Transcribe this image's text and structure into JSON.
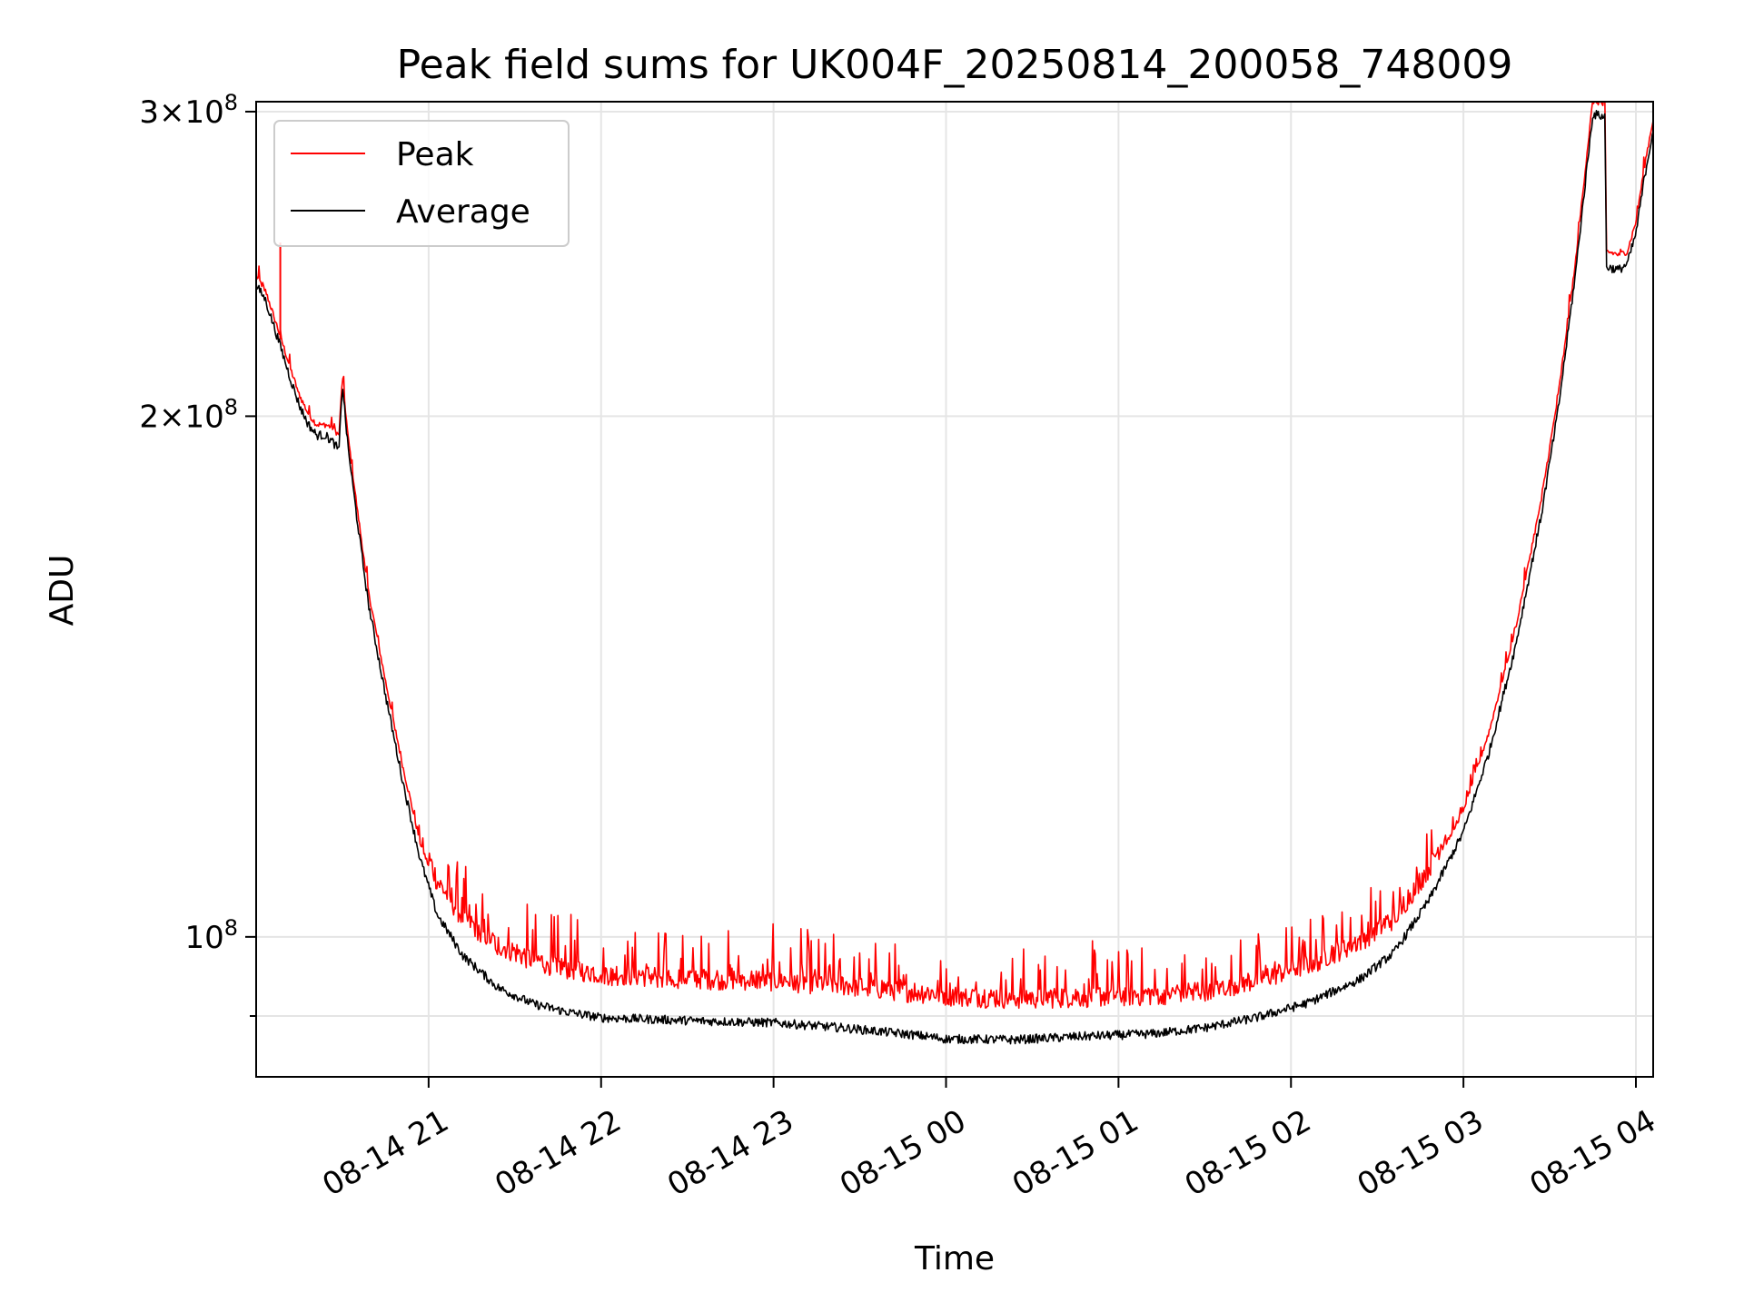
{
  "chart_data": {
    "type": "line",
    "title": "Peak field sums for UK004F_20250814_200058_748009",
    "xlabel": "Time",
    "ylabel": "ADU",
    "x_axis": {
      "type": "time",
      "range_hours": [
        20.0,
        28.1
      ],
      "ticks": [
        {
          "hour": 21,
          "label": "08-14 21"
        },
        {
          "hour": 22,
          "label": "08-14 22"
        },
        {
          "hour": 23,
          "label": "08-14 23"
        },
        {
          "hour": 24,
          "label": "08-15 00"
        },
        {
          "hour": 25,
          "label": "08-15 01"
        },
        {
          "hour": 26,
          "label": "08-15 02"
        },
        {
          "hour": 27,
          "label": "08-15 03"
        },
        {
          "hour": 28,
          "label": "08-15 04"
        }
      ]
    },
    "y_axis": {
      "scale": "log",
      "range": [
        83000000,
        304000000
      ],
      "major_ticks": [
        {
          "value": 100000000,
          "base": "10",
          "exp": "8",
          "coef": ""
        },
        {
          "value": 200000000,
          "base": "×10",
          "exp": "8",
          "coef": "2"
        },
        {
          "value": 300000000,
          "base": "×10",
          "exp": "8",
          "coef": "3"
        }
      ],
      "minor_ticks": [
        90000000
      ]
    },
    "grid": true,
    "legend": {
      "position": "upper-left",
      "entries": [
        "Peak",
        "Average"
      ]
    },
    "series": [
      {
        "name": "Peak",
        "color": "#ff0000",
        "points": [
          [
            20.0,
            240000000
          ],
          [
            20.05,
            236000000
          ],
          [
            20.1,
            228000000
          ],
          [
            20.15,
            220000000
          ],
          [
            20.2,
            212000000
          ],
          [
            20.25,
            205000000
          ],
          [
            20.3,
            200000000
          ],
          [
            20.35,
            197000000
          ],
          [
            20.4,
            197000000
          ],
          [
            20.45,
            196000000
          ],
          [
            20.48,
            194000000
          ],
          [
            20.5,
            210000000
          ],
          [
            20.53,
            195000000
          ],
          [
            20.58,
            178000000
          ],
          [
            20.65,
            158000000
          ],
          [
            20.75,
            140000000
          ],
          [
            20.85,
            125000000
          ],
          [
            20.95,
            113000000
          ],
          [
            21.05,
            106000000
          ],
          [
            21.2,
            101000000
          ],
          [
            21.4,
            97500000
          ],
          [
            21.6,
            95500000
          ],
          [
            21.8,
            94500000
          ],
          [
            22.0,
            93800000
          ],
          [
            22.3,
            93500000
          ],
          [
            22.6,
            93200000
          ],
          [
            23.0,
            93000000
          ],
          [
            23.4,
            92400000
          ],
          [
            23.8,
            91600000
          ],
          [
            24.0,
            91200000
          ],
          [
            24.4,
            90800000
          ],
          [
            24.8,
            91000000
          ],
          [
            25.2,
            91200000
          ],
          [
            25.5,
            91800000
          ],
          [
            25.8,
            93000000
          ],
          [
            26.1,
            95000000
          ],
          [
            26.4,
            98000000
          ],
          [
            26.6,
            101000000
          ],
          [
            26.8,
            108000000
          ],
          [
            27.0,
            118000000
          ],
          [
            27.15,
            131000000
          ],
          [
            27.3,
            150000000
          ],
          [
            27.45,
            178000000
          ],
          [
            27.55,
            205000000
          ],
          [
            27.65,
            245000000
          ],
          [
            27.72,
            285000000
          ],
          [
            27.75,
            303000000
          ],
          [
            27.82,
            302000000
          ],
          [
            27.83,
            248000000
          ],
          [
            27.9,
            247000000
          ],
          [
            27.95,
            248000000
          ],
          [
            28.0,
            258000000
          ],
          [
            28.05,
            278000000
          ],
          [
            28.1,
            296000000
          ]
        ],
        "spikes": [
          [
            20.14,
            252000000
          ]
        ]
      },
      {
        "name": "Average",
        "color": "#000000",
        "points": [
          [
            20.0,
            238000000
          ],
          [
            20.05,
            234000000
          ],
          [
            20.1,
            226000000
          ],
          [
            20.15,
            218000000
          ],
          [
            20.2,
            210000000
          ],
          [
            20.25,
            203000000
          ],
          [
            20.3,
            198000000
          ],
          [
            20.35,
            195000000
          ],
          [
            20.4,
            195000000
          ],
          [
            20.45,
            193000000
          ],
          [
            20.48,
            191000000
          ],
          [
            20.5,
            209000000
          ],
          [
            20.53,
            193000000
          ],
          [
            20.58,
            176000000
          ],
          [
            20.65,
            156000000
          ],
          [
            20.75,
            138000000
          ],
          [
            20.85,
            123000000
          ],
          [
            20.95,
            111000000
          ],
          [
            21.05,
            103000000
          ],
          [
            21.2,
            97500000
          ],
          [
            21.4,
            93500000
          ],
          [
            21.6,
            91500000
          ],
          [
            21.8,
            90500000
          ],
          [
            22.0,
            89800000
          ],
          [
            22.3,
            89600000
          ],
          [
            22.6,
            89400000
          ],
          [
            23.0,
            89200000
          ],
          [
            23.4,
            88600000
          ],
          [
            23.8,
            87800000
          ],
          [
            24.0,
            87300000
          ],
          [
            24.4,
            87200000
          ],
          [
            24.8,
            87600000
          ],
          [
            25.2,
            87900000
          ],
          [
            25.5,
            88600000
          ],
          [
            25.8,
            89800000
          ],
          [
            26.1,
            91600000
          ],
          [
            26.4,
            94500000
          ],
          [
            26.6,
            98000000
          ],
          [
            26.8,
            105000000
          ],
          [
            27.0,
            115000000
          ],
          [
            27.15,
            128000000
          ],
          [
            27.3,
            147000000
          ],
          [
            27.45,
            175000000
          ],
          [
            27.55,
            202000000
          ],
          [
            27.65,
            242000000
          ],
          [
            27.72,
            281000000
          ],
          [
            27.75,
            299000000
          ],
          [
            27.82,
            298000000
          ],
          [
            27.83,
            244000000
          ],
          [
            27.9,
            243000000
          ],
          [
            27.95,
            245000000
          ],
          [
            28.0,
            255000000
          ],
          [
            28.05,
            275000000
          ],
          [
            28.1,
            293000000
          ]
        ]
      }
    ]
  }
}
